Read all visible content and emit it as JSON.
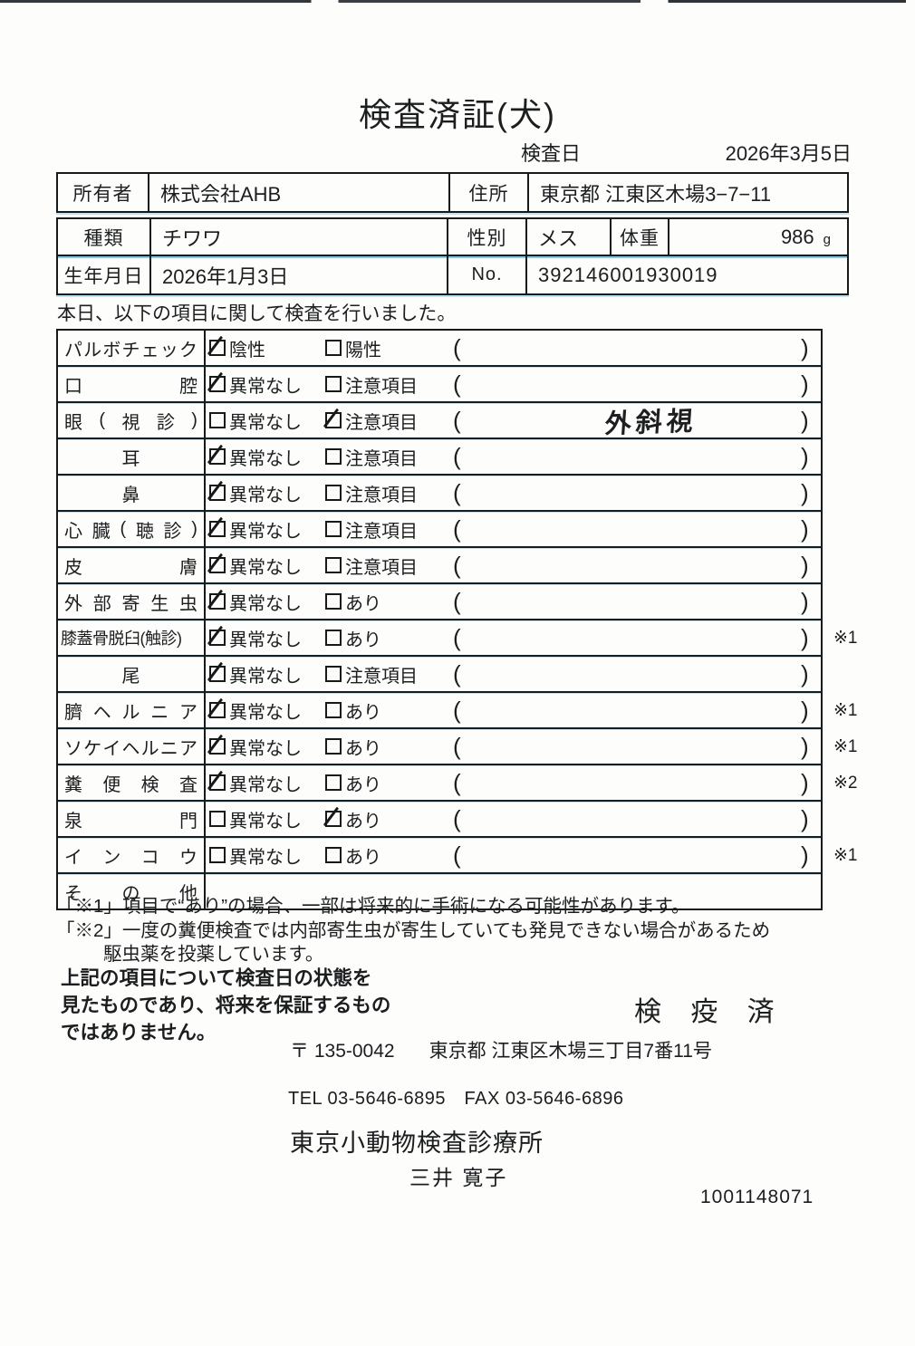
{
  "title": "検査済証(犬)",
  "header": {
    "date_label": "検査日",
    "date_value": "2026年3月5日"
  },
  "owner_table": {
    "owner_label": "所有者",
    "owner": "株式会社AHB",
    "address_label": "住所",
    "address": "東京都 江東区木場3−7−11"
  },
  "animal_table": {
    "breed_label": "種類",
    "breed": "チワワ",
    "sex_label": "性別",
    "sex": "メス",
    "weight_label": "体重",
    "weight": "986",
    "weight_unit": "g",
    "birth_label": "生年月日",
    "birth": "2026年1月3日",
    "no_label": "No.",
    "no": "392146001930019"
  },
  "intro": "本日、以下の項目に関して検査を行いました。",
  "symbols": {
    "paren_open": "(",
    "paren_close": ")"
  },
  "rows": [
    {
      "label": "パルボチェック",
      "align": "justify",
      "opt1": {
        "text": "陰性",
        "checked": true
      },
      "opt2": {
        "text": "陽性",
        "checked": false
      },
      "note": "",
      "marker": "",
      "empty": false
    },
    {
      "label": "口腔",
      "align": "justify",
      "opt1": {
        "text": "異常なし",
        "checked": true
      },
      "opt2": {
        "text": "注意項目",
        "checked": false
      },
      "note": "",
      "marker": "",
      "empty": false
    },
    {
      "label": "眼(視診)",
      "align": "justify",
      "opt1": {
        "text": "異常なし",
        "checked": false
      },
      "opt2": {
        "text": "注意項目",
        "checked": true
      },
      "note": "外斜視",
      "marker": "",
      "empty": false
    },
    {
      "label": "耳",
      "align": "center",
      "opt1": {
        "text": "異常なし",
        "checked": true
      },
      "opt2": {
        "text": "注意項目",
        "checked": false
      },
      "note": "",
      "marker": "",
      "empty": false
    },
    {
      "label": "鼻",
      "align": "center",
      "opt1": {
        "text": "異常なし",
        "checked": true
      },
      "opt2": {
        "text": "注意項目",
        "checked": false
      },
      "note": "",
      "marker": "",
      "empty": false
    },
    {
      "label": "心臓(聴診)",
      "align": "justify",
      "opt1": {
        "text": "異常なし",
        "checked": true
      },
      "opt2": {
        "text": "注意項目",
        "checked": false
      },
      "note": "",
      "marker": "",
      "empty": false
    },
    {
      "label": "皮膚",
      "align": "justify",
      "opt1": {
        "text": "異常なし",
        "checked": true
      },
      "opt2": {
        "text": "注意項目",
        "checked": false
      },
      "note": "",
      "marker": "",
      "empty": false
    },
    {
      "label": "外部寄生虫",
      "align": "justify",
      "opt1": {
        "text": "異常なし",
        "checked": true
      },
      "opt2": {
        "text": "あり",
        "checked": false
      },
      "note": "",
      "marker": "",
      "empty": false
    },
    {
      "label": "膝蓋骨脱臼(触診)",
      "align": "tight",
      "opt1": {
        "text": "異常なし",
        "checked": true
      },
      "opt2": {
        "text": "あり",
        "checked": false
      },
      "note": "",
      "marker": "※1",
      "empty": false
    },
    {
      "label": "尾",
      "align": "center",
      "opt1": {
        "text": "異常なし",
        "checked": true
      },
      "opt2": {
        "text": "注意項目",
        "checked": false
      },
      "note": "",
      "marker": "",
      "empty": false
    },
    {
      "label": "臍ヘルニア",
      "align": "justify",
      "opt1": {
        "text": "異常なし",
        "checked": true
      },
      "opt2": {
        "text": "あり",
        "checked": false
      },
      "note": "",
      "marker": "※1",
      "empty": false
    },
    {
      "label": "ソケイヘルニア",
      "align": "justify",
      "opt1": {
        "text": "異常なし",
        "checked": true
      },
      "opt2": {
        "text": "あり",
        "checked": false
      },
      "note": "",
      "marker": "※1",
      "empty": false
    },
    {
      "label": "糞便検査",
      "align": "justify",
      "opt1": {
        "text": "異常なし",
        "checked": true
      },
      "opt2": {
        "text": "あり",
        "checked": false
      },
      "note": "",
      "marker": "※2",
      "empty": false
    },
    {
      "label": "泉門",
      "align": "justify",
      "opt1": {
        "text": "異常なし",
        "checked": false
      },
      "opt2": {
        "text": "あり",
        "checked": true
      },
      "note": "",
      "marker": "",
      "empty": false
    },
    {
      "label": "インコウ",
      "align": "justify",
      "opt1": {
        "text": "異常なし",
        "checked": false
      },
      "opt2": {
        "text": "あり",
        "checked": false
      },
      "note": "",
      "marker": "※1",
      "empty": false
    },
    {
      "label": "その他",
      "align": "justify",
      "opt1": null,
      "opt2": null,
      "note": "",
      "marker": "",
      "empty": true
    }
  ],
  "notes": [
    "「※1」項目で“あり”の場合、一部は将来的に手術になる可能性があります。",
    "「※2」一度の糞便検査では内部寄生虫が寄生していても発見できない場合があるため",
    "駆虫薬を投薬しています。"
  ],
  "disclaimer": [
    "上記の項目について検査日の状態を",
    "見たものであり、将来を保証するもの",
    "ではありません。"
  ],
  "stamp": "検 疫 済",
  "footer": {
    "postal": "〒 135-0042",
    "address": "東京都 江東区木場三丁目7番11号",
    "tel_fax": "TEL 03-5646-6895　FAX 03-5646-6896",
    "clinic": "東京小動物検査診療所",
    "vet": "三井 寛子",
    "serial": "1001148071"
  }
}
